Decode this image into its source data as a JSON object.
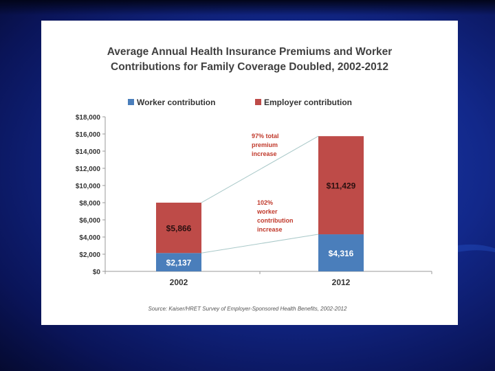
{
  "chart_data": {
    "type": "bar",
    "stacked": true,
    "title": "Average Annual Health Insurance Premiums and Worker Contributions for Family Coverage Doubled, 2002-2012",
    "title_lines": [
      "Average Annual Health Insurance Premiums and Worker",
      "Contributions for Family Coverage Doubled, 2002-2012"
    ],
    "categories": [
      "2002",
      "2012"
    ],
    "series": [
      {
        "name": "Worker contribution",
        "values": [
          2137,
          4316
        ],
        "labels": [
          "$2,137",
          "$4,316"
        ],
        "color": "#4a7ebb"
      },
      {
        "name": "Employer contribution",
        "values": [
          5866,
          11429
        ],
        "labels": [
          "$5,866",
          "$11,429"
        ],
        "color": "#be4b48"
      }
    ],
    "ylim": [
      0,
      18000
    ],
    "yticks": [
      0,
      2000,
      4000,
      6000,
      8000,
      10000,
      12000,
      14000,
      16000,
      18000
    ],
    "ytick_labels": [
      "$0",
      "$2,000",
      "$4,000",
      "$6,000",
      "$8,000",
      "$10,000",
      "$12,000",
      "$14,000",
      "$16,000",
      "$18,000"
    ],
    "legend_position": "top",
    "grid": false,
    "annotations": [
      {
        "lines": [
          "97% total",
          "premium",
          "increase"
        ],
        "color": "#c0392b"
      },
      {
        "lines": [
          "102%",
          "worker",
          "contribution",
          "increase"
        ],
        "color": "#c0392b"
      }
    ],
    "source": "Source: Kaiser/HRET Survey of Employer-Sponsored Health Benefits, 2002-2012"
  }
}
